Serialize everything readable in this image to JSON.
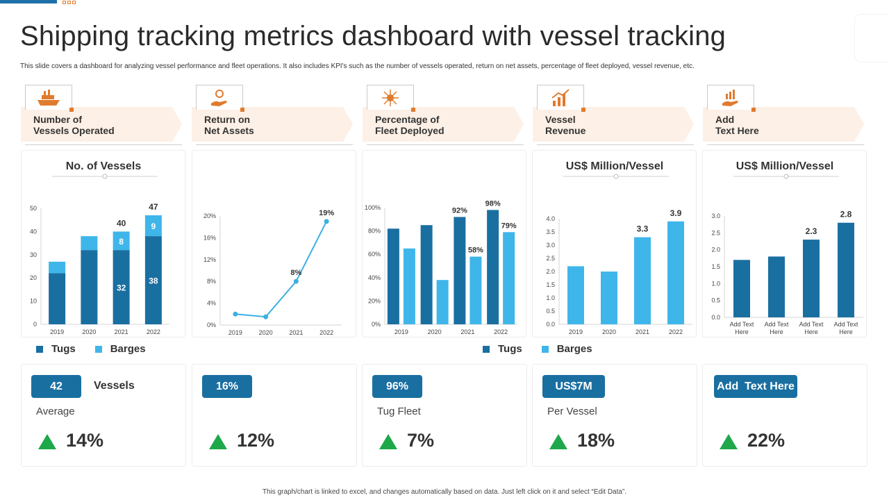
{
  "page": {
    "title": "Shipping tracking metrics dashboard with vessel tracking",
    "subtitle": "This slide covers a dashboard for analyzing vessel performance and fleet operations. It also includes KPI's  such as the number  of vessels operated, return on net assets, percentage of fleet deployed, vessel revenue, etc.",
    "footer": "This graph/chart is linked to excel, and changes automatically based on data. Just left click on it and select “Edit Data”."
  },
  "colors": {
    "dark_blue": "#1a6fa1",
    "light_blue": "#3fb6ea",
    "line_blue": "#3ab0e2",
    "orange": "#e07b2e",
    "green": "#1ea84a",
    "arrow_bg": "#fdf0e6"
  },
  "kpi_headers": [
    {
      "line1": "Number of",
      "line2": "Vessels Operated",
      "icon": "ship-icon"
    },
    {
      "line1": "Return on",
      "line2": "Net Assets",
      "icon": "money-hand-icon"
    },
    {
      "line1": "Percentage of",
      "line2": "Fleet Deployed",
      "icon": "network-icon"
    },
    {
      "line1": "Vessel",
      "line2": "Revenue",
      "icon": "growth-chart-icon"
    },
    {
      "line1": "Add",
      "line2": "Text Here",
      "icon": "hand-chart-icon"
    }
  ],
  "legend": {
    "tugs": "Tugs",
    "barges": "Barges"
  },
  "stats": [
    {
      "pill": "42",
      "side": "Vessels",
      "caption": "Average",
      "change": "14%"
    },
    {
      "pill": "16%",
      "side": "",
      "caption": "",
      "change": "12%"
    },
    {
      "pill": "96%",
      "side": "",
      "caption": "Tug Fleet",
      "change": "7%"
    },
    {
      "pill": "US$7M",
      "side": "",
      "caption": "Per Vessel",
      "change": "18%"
    },
    {
      "pill": "Add  Text Here",
      "side": "",
      "caption": "",
      "change": "22%"
    }
  ],
  "chart_data": [
    {
      "type": "bar",
      "stacked": true,
      "title": "No. of Vessels",
      "categories": [
        "2019",
        "2020",
        "2021",
        "2022"
      ],
      "series": [
        {
          "name": "Tugs",
          "values": [
            22,
            32,
            32,
            38
          ]
        },
        {
          "name": "Barges",
          "values": [
            5,
            6,
            8,
            9
          ]
        }
      ],
      "segment_labels": {
        "2021": [
          "32",
          "8"
        ],
        "2022": [
          "38",
          "9"
        ]
      },
      "total_labels": {
        "2021": "40",
        "2022": "47"
      },
      "ylim": [
        0,
        50
      ],
      "yticks": [
        "0",
        "10",
        "20",
        "30",
        "40",
        "50"
      ]
    },
    {
      "type": "line",
      "title": "",
      "categories": [
        "2019",
        "2020",
        "2021",
        "2022"
      ],
      "values": [
        2,
        1.5,
        8,
        19
      ],
      "point_labels": {
        "2021": "8%",
        "2022": "19%"
      },
      "ylim": [
        0,
        20
      ],
      "yticks": [
        "0%",
        "4%",
        "8%",
        "12%",
        "16%",
        "20%"
      ]
    },
    {
      "type": "bar",
      "title": "",
      "categories": [
        "2019",
        "2020",
        "2021",
        "2022"
      ],
      "series": [
        {
          "name": "Tugs",
          "values": [
            82,
            85,
            92,
            98
          ]
        },
        {
          "name": "Barges",
          "values": [
            65,
            38,
            58,
            79
          ]
        }
      ],
      "bar_labels": {
        "2021": [
          "92%",
          "58%"
        ],
        "2022": [
          "98%",
          "79%"
        ]
      },
      "ylim": [
        0,
        100
      ],
      "yticks": [
        "0%",
        "20%",
        "40%",
        "60%",
        "80%",
        "100%"
      ]
    },
    {
      "type": "bar",
      "title": "US$ Million/Vessel",
      "categories": [
        "2019",
        "2020",
        "2021",
        "2022"
      ],
      "values": [
        2.2,
        2.0,
        3.3,
        3.9
      ],
      "bar_labels": {
        "2021": "3.3",
        "2022": "3.9"
      },
      "ylim": [
        0,
        4
      ],
      "yticks": [
        "0.0",
        "0.5",
        "1.0",
        "1.5",
        "2.0",
        "2.5",
        "3.0",
        "3.5",
        "4.0"
      ]
    },
    {
      "type": "bar",
      "title": "US$ Million/Vessel",
      "categories": [
        "Add Text Here",
        "Add Text Here",
        "Add Text Here",
        "Add Text Here"
      ],
      "values": [
        1.7,
        1.8,
        2.3,
        2.8
      ],
      "bar_labels": {
        "2": "2.3",
        "3": "2.8"
      },
      "ylim": [
        0,
        3
      ],
      "yticks": [
        "0.0",
        "0.5",
        "1.0",
        "1.5",
        "2.0",
        "2.5",
        "3.0"
      ]
    }
  ]
}
